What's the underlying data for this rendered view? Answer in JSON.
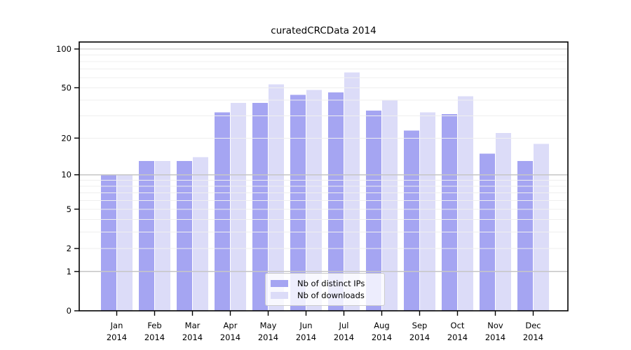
{
  "chart_data": {
    "type": "bar",
    "title": "curatedCRCData 2014",
    "categories": [
      "Jan",
      "Feb",
      "Mar",
      "Apr",
      "May",
      "Jun",
      "Jul",
      "Aug",
      "Sep",
      "Oct",
      "Nov",
      "Dec"
    ],
    "x_tick_year_line": "2014",
    "series": [
      {
        "name": "Nb of distinct IPs",
        "color": "#a5a5f2",
        "values": [
          10,
          13,
          13,
          32,
          38,
          44,
          46,
          33,
          23,
          31,
          15,
          13
        ]
      },
      {
        "name": "Nb of downloads",
        "color": "#dcdcf8",
        "values": [
          10,
          13,
          14,
          38,
          53,
          48,
          66,
          40,
          32,
          43,
          22,
          18
        ]
      }
    ],
    "y_scale": "log1p",
    "y_ticks": [
      0,
      1,
      2,
      5,
      10,
      20,
      50,
      100
    ],
    "y_major_gridlines": [
      1,
      10,
      100
    ],
    "y_minor_gridlines": [
      2,
      3,
      4,
      5,
      6,
      7,
      8,
      9,
      20,
      30,
      40,
      50,
      60,
      70,
      80,
      90
    ],
    "ylim": [
      0,
      113
    ],
    "xlabel": "",
    "ylabel": "",
    "grid": true,
    "grid_above_bars": true,
    "legend_position": "lower center",
    "colors": {
      "spine": "#000000",
      "major_grid": "#c6c6c6",
      "minor_grid": "#efefef",
      "tick_label": "#000000"
    }
  }
}
